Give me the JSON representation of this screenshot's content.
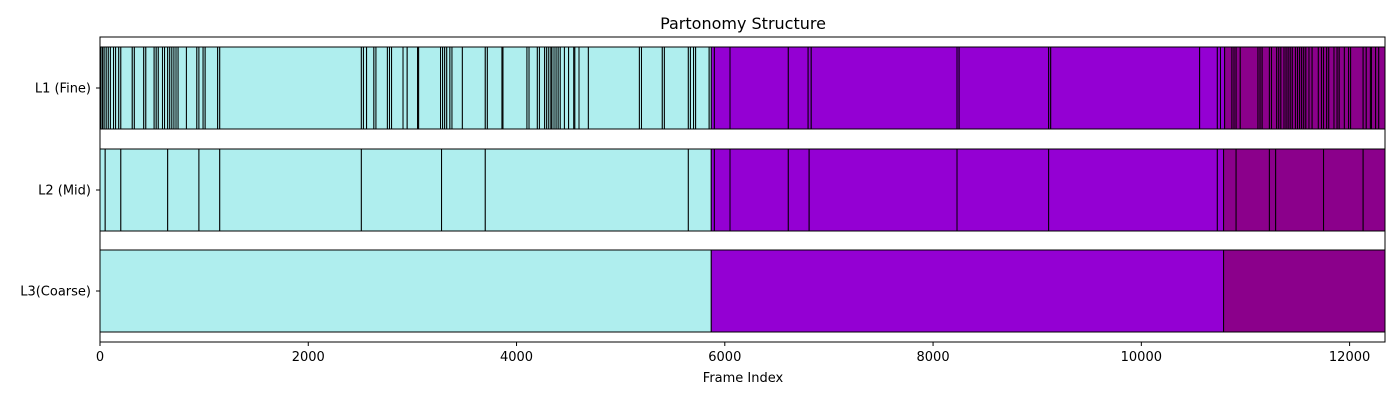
{
  "chart_data": {
    "type": "bar",
    "orientation": "horizontal-segments",
    "title": "Partonomy Structure",
    "xlabel": "Frame Index",
    "ylabel": "",
    "xlim": [
      0,
      12340
    ],
    "xticks": [
      0,
      2000,
      4000,
      6000,
      8000,
      10000,
      12000
    ],
    "xtick_labels": [
      "0",
      "2000",
      "4000",
      "6000",
      "8000",
      "10000",
      "12000"
    ],
    "grid": false,
    "colors": {
      "group1": "#afeeee",
      "group2": "#9400d3",
      "group3": "#8b008b",
      "edge": "#000000"
    },
    "levels": [
      {
        "label": "L3(Coarse)",
        "boundaries": [
          0,
          5870,
          10790,
          12340
        ]
      },
      {
        "label": "L2 (Mid)",
        "boundaries": [
          0,
          50,
          200,
          650,
          950,
          1150,
          2510,
          3280,
          3700,
          5650,
          5870,
          5900,
          6050,
          6610,
          6810,
          8230,
          9110,
          10730,
          10790,
          10910,
          11230,
          11290,
          11750,
          12130,
          12340
        ]
      },
      {
        "label": "L1 (Fine)",
        "boundaries": [
          0,
          10,
          25,
          40,
          60,
          80,
          100,
          130,
          150,
          180,
          200,
          310,
          330,
          420,
          440,
          520,
          540,
          560,
          600,
          620,
          650,
          670,
          690,
          710,
          730,
          750,
          830,
          930,
          950,
          990,
          1010,
          1130,
          1150,
          2510,
          2530,
          2560,
          2630,
          2650,
          2760,
          2780,
          2800,
          2910,
          2950,
          3050,
          3060,
          3270,
          3290,
          3310,
          3330,
          3360,
          3380,
          3480,
          3700,
          3720,
          3860,
          3870,
          4100,
          4120,
          4200,
          4220,
          4270,
          4290,
          4310,
          4330,
          4340,
          4360,
          4380,
          4400,
          4420,
          4460,
          4500,
          4550,
          4560,
          4600,
          4690,
          5180,
          5200,
          5400,
          5420,
          5650,
          5670,
          5700,
          5720,
          5850,
          5870,
          5900,
          6050,
          6610,
          6800,
          6830,
          8230,
          8250,
          9110,
          9130,
          10560,
          10730,
          10760,
          10800,
          10870,
          10890,
          10910,
          10950,
          11120,
          11140,
          11160,
          11230,
          11250,
          11300,
          11320,
          11340,
          11370,
          11390,
          11410,
          11430,
          11450,
          11480,
          11500,
          11520,
          11540,
          11560,
          11580,
          11610,
          11640,
          11700,
          11730,
          11750,
          11780,
          11800,
          11850,
          11880,
          11900,
          11950,
          11990,
          12010,
          12130,
          12160,
          12200,
          12210,
          12250,
          12280,
          12340
        ]
      }
    ]
  }
}
